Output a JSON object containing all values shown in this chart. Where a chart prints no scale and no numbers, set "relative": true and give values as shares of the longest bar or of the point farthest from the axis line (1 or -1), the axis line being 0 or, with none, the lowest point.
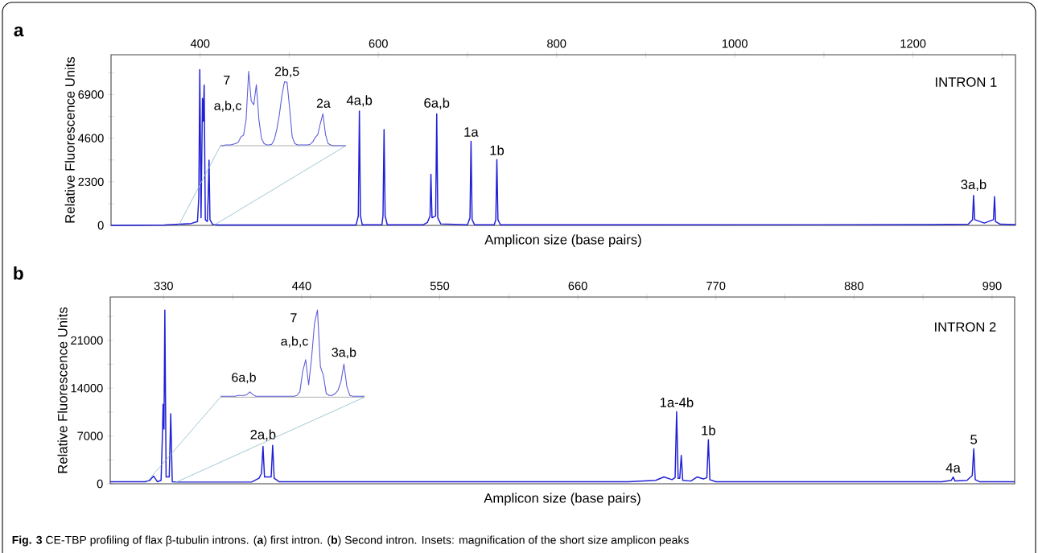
{
  "chart_data": [
    {
      "type": "line",
      "title": "a",
      "subtitle": "INTRON 1",
      "xlabel": "Amplicon size (base pairs)",
      "ylabel": "Relative Fluorescence Units",
      "x": [
        300,
        360,
        390,
        397,
        398.5,
        399.6,
        401,
        402.6,
        403.5,
        404.5,
        405.8,
        408,
        409,
        410,
        411,
        414,
        420,
        575,
        577.5,
        578.7,
        579.9,
        582,
        604,
        605.2,
        606.4,
        607.6,
        610,
        650,
        655,
        658,
        659,
        660.2,
        664.3,
        665.5,
        666.7,
        670,
        700,
        702.8,
        704,
        705.2,
        708,
        730,
        731.8,
        733,
        734.2,
        737,
        1220,
        1262,
        1266.8,
        1268,
        1269.2,
        1280,
        1290.3,
        1291.5,
        1292.7,
        1298,
        1315
      ],
      "series": [
        {
          "color": "#1f1fd6",
          "values": [
            0,
            20,
            100,
            200,
            1500,
            8211,
            400,
            6700,
            5500,
            7400,
            300,
            200,
            1500,
            3436,
            300,
            50,
            20,
            20,
            500,
            6026,
            500,
            30,
            30,
            500,
            5057,
            500,
            30,
            30,
            150,
            500,
            2696,
            400,
            500,
            5885,
            400,
            80,
            30,
            400,
            4440,
            300,
            30,
            30,
            300,
            3471,
            300,
            30,
            40,
            60,
            300,
            1586,
            300,
            120,
            300,
            1515,
            200,
            60,
            40
          ]
        }
      ],
      "xlim": [
        300,
        1315
      ],
      "ylim": [
        0,
        9000
      ],
      "xticks": [
        400,
        {
          "value": 500,
          "label": null
        },
        600,
        {
          "value": 700,
          "label": null
        },
        800,
        {
          "value": 900,
          "label": null
        },
        1000,
        {
          "value": 1100,
          "label": null
        },
        1200,
        {
          "value": 1300,
          "label": null
        }
      ],
      "yticks": [
        0,
        {
          "value": 1150,
          "label": null
        },
        2300,
        {
          "value": 3450,
          "label": null
        },
        4600,
        {
          "value": 5750,
          "label": null
        },
        6900,
        {
          "value": 8050,
          "label": null
        }
      ],
      "annotations": [
        {
          "text": "4a,b",
          "x": 578.7,
          "y": 6026
        },
        {
          "text": "6a,b",
          "x": 665.5,
          "y": 5885
        },
        {
          "text": "1a",
          "x": 704,
          "y": 4440
        },
        {
          "text": "1b",
          "x": 733,
          "y": 3471
        },
        {
          "text": "3a,b",
          "x": 1268,
          "y": 1586
        }
      ]
    },
    {
      "type": "line",
      "relative": true,
      "color": "#5b5bd8",
      "categories": [
        null,
        null,
        null,
        null,
        null,
        null,
        null,
        null,
        null,
        null,
        null,
        null,
        null,
        null,
        null,
        null,
        null,
        null,
        null,
        null,
        null,
        null,
        null,
        null,
        null,
        null,
        null,
        null,
        null,
        null,
        null,
        null,
        null,
        null,
        null,
        null,
        null,
        null,
        null,
        null,
        null,
        null,
        null,
        null,
        null,
        null,
        null,
        null,
        null,
        null
      ],
      "values": [
        0,
        0,
        0.01,
        0.01,
        0.01,
        0.02,
        0.03,
        0.05,
        0.12,
        0.14,
        0.35,
        1,
        0.6,
        0.55,
        0.82,
        0.35,
        0.1,
        0.03,
        0.01,
        0.01,
        0.02,
        0.08,
        0.22,
        0.42,
        0.68,
        0.86,
        0.85,
        0.5,
        0.12,
        0.03,
        0.01,
        0.01,
        0.01,
        0.01,
        0.01,
        0.02,
        0.05,
        0.11,
        0.15,
        0.3,
        0.43,
        0.15,
        0.03,
        0.01,
        0,
        0,
        0,
        0,
        0,
        0
      ],
      "annotations": [
        "7",
        "a,b,c",
        "2b,5",
        "2a"
      ]
    },
    {
      "type": "line",
      "title": "b",
      "subtitle": "INTRON 2",
      "xlabel": "Amplicon size (base pairs)",
      "ylabel": "Relative Fluorescence Units",
      "x": [
        287.5,
        315,
        319,
        322,
        325,
        328,
        329.2,
        329.6,
        330.3,
        331,
        332,
        334.5,
        335.7,
        336.9,
        340,
        400,
        406,
        408,
        409.2,
        410.4,
        415.7,
        416.9,
        418.1,
        422,
        700,
        722,
        728.6,
        735,
        737.5,
        738.7,
        739.9,
        741.2,
        742.4,
        743.6,
        750,
        755,
        760,
        762.8,
        764,
        765.2,
        770,
        950,
        957.5,
        959,
        960.5,
        970,
        974.2,
        975.4,
        976.6,
        980,
        1008
      ],
      "series": [
        {
          "color": "#1f1fd6",
          "values": [
            300,
            300,
            500,
            1124,
            300,
            500,
            8000,
            11630,
            8000,
            25450,
            1000,
            1000,
            10260,
            300,
            250,
            250,
            800,
            1500,
            5470,
            1000,
            1000,
            5620,
            800,
            300,
            300,
            500,
            1000,
            600,
            900,
            10550,
            800,
            800,
            4150,
            500,
            400,
            1000,
            700,
            900,
            6450,
            600,
            300,
            300,
            500,
            980,
            400,
            500,
            1200,
            5130,
            600,
            300,
            300
          ]
        }
      ],
      "xlim": [
        287.5,
        1008
      ],
      "ylim": [
        0,
        27350
      ],
      "xticks": [
        330,
        {
          "value": 385,
          "label": null
        },
        440,
        {
          "value": 495,
          "label": null
        },
        550,
        {
          "value": 605,
          "label": null
        },
        660,
        {
          "value": 715,
          "label": null
        },
        770,
        {
          "value": 825,
          "label": null
        },
        880,
        {
          "value": 935,
          "label": null
        },
        990
      ],
      "yticks": [
        0,
        {
          "value": 3500,
          "label": null
        },
        7000,
        {
          "value": 10500,
          "label": null
        },
        14000,
        {
          "value": 17500,
          "label": null
        },
        21000,
        {
          "value": 24500,
          "label": null
        }
      ],
      "annotations": [
        {
          "text": "2a,b",
          "x": 409.2,
          "y": 5620
        },
        {
          "text": "1a-4b",
          "x": 738.7,
          "y": 10550
        },
        {
          "text": "1b",
          "x": 764,
          "y": 6450
        },
        {
          "text": "4a",
          "x": 959,
          "y": 980
        },
        {
          "text": "5",
          "x": 975.4,
          "y": 5130
        },
        "**Fig. 3** CE-TBP profiling of flax β-tubulin introns. (**a**) first intron. (**b**) Second intron. Insets: magnification of the short size amplicon peaks"
      ]
    },
    {
      "type": "line",
      "relative": true,
      "color": "#5b5bd8",
      "categories": [
        null,
        null,
        null,
        null,
        null,
        null,
        null,
        null,
        null,
        null,
        null,
        null,
        null,
        null,
        null,
        null,
        null,
        null,
        null,
        null,
        null,
        null,
        null,
        null,
        null,
        null,
        null,
        null,
        null,
        null,
        null,
        null,
        null,
        null,
        null,
        null,
        null,
        null,
        null,
        null,
        null,
        null,
        null,
        null,
        null,
        null,
        null,
        null,
        null,
        null
      ],
      "values": [
        0.01,
        0.01,
        0.01,
        0.01,
        0.01,
        0.01,
        0.02,
        0.02,
        0.02,
        0.03,
        0.06,
        0.03,
        0.01,
        0.01,
        0.01,
        0.01,
        0.01,
        0.01,
        0.01,
        0.01,
        0.01,
        0.01,
        0.01,
        0.01,
        0.01,
        0.01,
        0.02,
        0.06,
        0.3,
        0.43,
        0.14,
        0.45,
        0.85,
        1,
        0.35,
        0.25,
        0.04,
        0.02,
        0.02,
        0.04,
        0.08,
        0.18,
        0.38,
        0.12,
        0.02,
        0.01,
        0.01,
        0.01,
        0.01,
        0.01
      ],
      "annotations": [
        "6a,b",
        "7",
        "a,b,c",
        "3a,b"
      ]
    }
  ]
}
